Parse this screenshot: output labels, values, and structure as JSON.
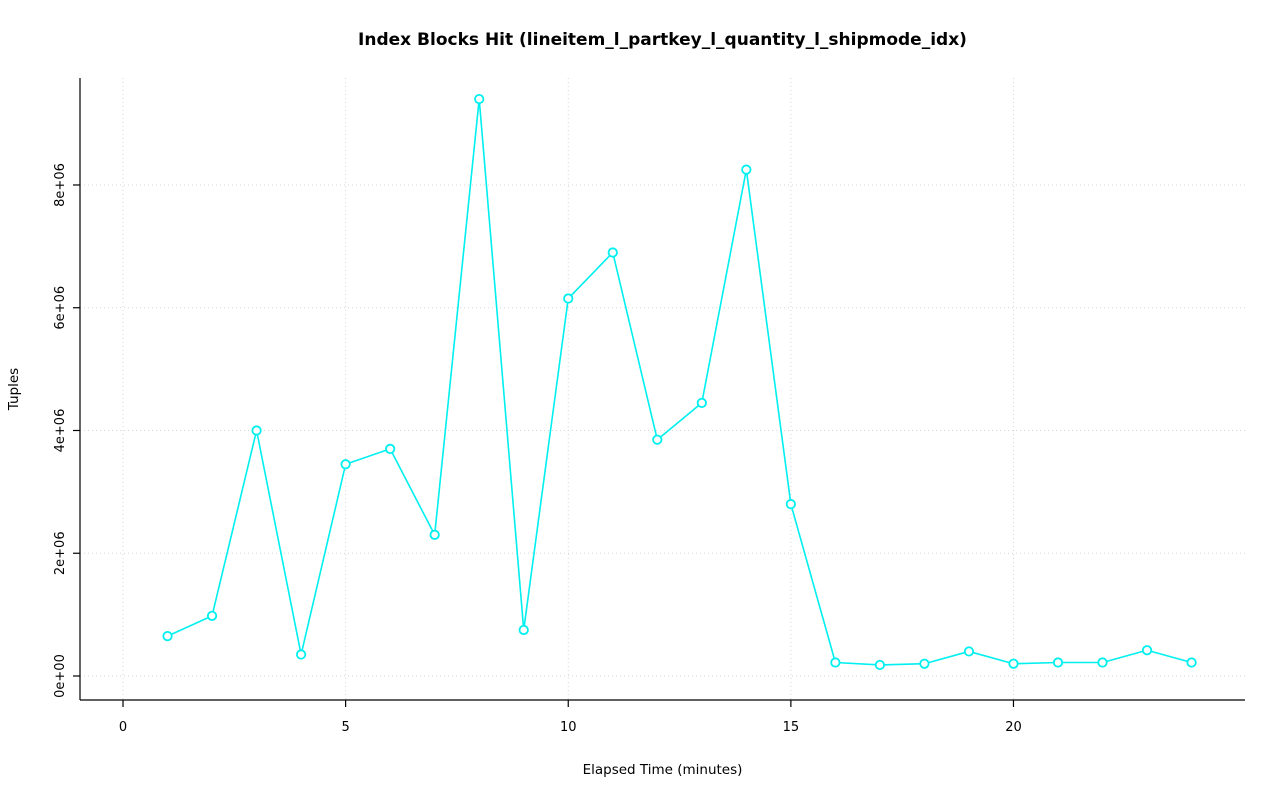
{
  "page": {
    "background_color": "#ffffff"
  },
  "chart_data": {
    "type": "line",
    "title": "Index Blocks Hit (lineitem_l_partkey_l_quantity_l_shipmode_idx)",
    "xlabel": "Elapsed Time (minutes)",
    "ylabel": "Tuples",
    "x": [
      1,
      2,
      3,
      4,
      5,
      6,
      7,
      8,
      9,
      10,
      11,
      12,
      13,
      14,
      15,
      16,
      17,
      18,
      19,
      20,
      21,
      22,
      23,
      24
    ],
    "values": [
      650000,
      980000,
      4000000,
      350000,
      3450000,
      3700000,
      2300000,
      9400000,
      750000,
      6150000,
      6900000,
      3850000,
      4450000,
      8250000,
      2800000,
      220000,
      180000,
      200000,
      400000,
      200000,
      220000,
      220000,
      420000,
      220000
    ],
    "xticks": {
      "values": [
        0,
        5,
        10,
        15,
        20
      ],
      "labels": [
        "0",
        "5",
        "10",
        "15",
        "20"
      ]
    },
    "yticks": {
      "values": [
        0,
        2000000,
        4000000,
        6000000,
        8000000
      ],
      "labels": [
        "0e+00",
        "2e+06",
        "4e+06",
        "6e+06",
        "8e+06"
      ]
    },
    "xlim": [
      -0.966,
      25.2
    ],
    "ylim": [
      -391000,
      9743000
    ],
    "grid": true,
    "legend": null,
    "series_color": "#00efef",
    "grid_color": "#d6d6d6",
    "axis_color": "#000000",
    "marker": "open-circle"
  }
}
